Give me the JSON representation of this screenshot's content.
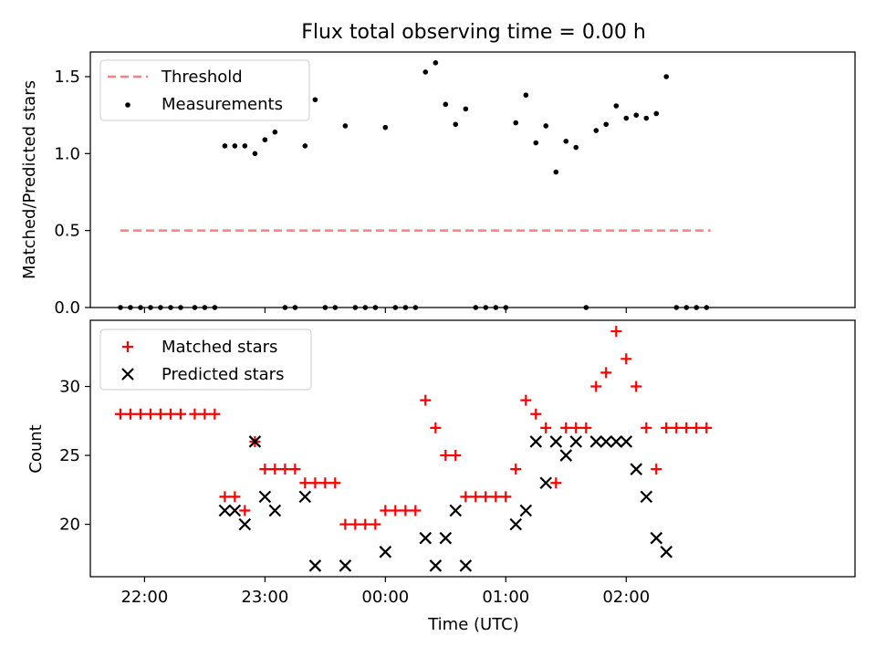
{
  "chart_data": [
    {
      "type": "scatter",
      "title": "Flux total observing time = 0.00 h",
      "xlabel": "",
      "ylabel": "Matched/Predicted stars",
      "ylim": [
        0,
        1.66
      ],
      "y_ticks": [
        0.0,
        0.5,
        1.0,
        1.5
      ],
      "y_tick_labels": [
        "0.0",
        "0.5",
        "1.0",
        "1.5"
      ],
      "x_unit": "hours after 22:00 UTC",
      "xlim": [
        -0.45,
        5.9
      ],
      "grid": false,
      "legend_position": "top-left",
      "series": [
        {
          "name": "Threshold",
          "kind": "dashed-line",
          "color": "#ff7f7f",
          "x": [
            -0.2,
            4.7
          ],
          "y": [
            0.5,
            0.5
          ]
        },
        {
          "name": "Measurements",
          "kind": "points",
          "color": "#000000",
          "x": [
            -0.2,
            -0.117,
            -0.033,
            0.05,
            0.133,
            0.217,
            0.3,
            0.417,
            0.5,
            0.583,
            0.667,
            0.75,
            0.833,
            0.917,
            1.0,
            1.083,
            1.167,
            1.25,
            1.333,
            1.417,
            1.5,
            1.583,
            1.667,
            1.75,
            1.833,
            1.917,
            2.0,
            2.083,
            2.167,
            2.25,
            2.333,
            2.417,
            2.5,
            2.583,
            2.667,
            2.75,
            2.833,
            2.917,
            3.0,
            3.083,
            3.167,
            3.25,
            3.333,
            3.417,
            3.5,
            3.583,
            3.667,
            3.75,
            3.833,
            3.917,
            4.0,
            4.083,
            4.167,
            4.25,
            4.333,
            4.417,
            4.5,
            4.583,
            4.667
          ],
          "y": [
            0,
            0,
            0,
            0,
            0,
            0,
            0,
            0,
            0,
            0,
            1.05,
            1.05,
            1.05,
            1.0,
            1.09,
            1.14,
            0,
            0,
            1.05,
            1.35,
            0,
            0,
            1.18,
            0,
            0,
            0,
            1.17,
            0,
            0,
            0,
            1.53,
            1.59,
            1.32,
            1.19,
            1.29,
            0,
            0,
            0,
            0,
            1.2,
            1.38,
            1.07,
            1.18,
            0.88,
            1.08,
            1.04,
            0,
            1.15,
            1.19,
            1.31,
            1.23,
            1.25,
            1.23,
            1.26,
            1.5,
            0,
            0,
            0,
            0
          ]
        }
      ]
    },
    {
      "type": "scatter",
      "title": "",
      "xlabel": "Time (UTC)",
      "ylabel": "Count",
      "ylim": [
        16.2,
        34.8
      ],
      "y_ticks": [
        20,
        25,
        30
      ],
      "y_tick_labels": [
        "20",
        "25",
        "30"
      ],
      "x_unit": "hours after 22:00 UTC",
      "xlim": [
        -0.45,
        5.9
      ],
      "x_ticks": [
        0,
        1,
        2,
        3,
        4
      ],
      "x_tick_labels": [
        "22:00",
        "23:00",
        "00:00",
        "01:00",
        "02:00"
      ],
      "grid": false,
      "legend_position": "top-left",
      "series": [
        {
          "name": "Matched stars",
          "kind": "plus",
          "color": "#ff0000",
          "x": [
            -0.2,
            -0.117,
            -0.033,
            0.05,
            0.133,
            0.217,
            0.3,
            0.417,
            0.5,
            0.583,
            0.667,
            0.75,
            0.833,
            0.917,
            1.0,
            1.083,
            1.167,
            1.25,
            1.333,
            1.417,
            1.5,
            1.583,
            1.667,
            1.75,
            1.833,
            1.917,
            2.0,
            2.083,
            2.167,
            2.25,
            2.333,
            2.417,
            2.5,
            2.583,
            2.667,
            2.75,
            2.833,
            2.917,
            3.0,
            3.083,
            3.167,
            3.25,
            3.333,
            3.417,
            3.5,
            3.583,
            3.667,
            3.75,
            3.833,
            3.917,
            4.0,
            4.083,
            4.167,
            4.25,
            4.333,
            4.417,
            4.5,
            4.583,
            4.667
          ],
          "y": [
            28,
            28,
            28,
            28,
            28,
            28,
            28,
            28,
            28,
            28,
            22,
            22,
            21,
            26,
            24,
            24,
            24,
            24,
            23,
            23,
            23,
            23,
            20,
            20,
            20,
            20,
            21,
            21,
            21,
            21,
            29,
            27,
            25,
            25,
            22,
            22,
            22,
            22,
            22,
            24,
            29,
            28,
            27,
            23,
            27,
            27,
            27,
            30,
            31,
            34,
            32,
            30,
            27,
            24,
            27,
            27,
            27,
            27,
            27
          ]
        },
        {
          "name": "Predicted stars",
          "kind": "cross",
          "color": "#000000",
          "x": [
            0.667,
            0.75,
            0.833,
            0.917,
            1.0,
            1.083,
            1.333,
            1.417,
            1.667,
            2.0,
            2.333,
            2.417,
            2.5,
            2.583,
            2.667,
            3.083,
            3.167,
            3.25,
            3.333,
            3.417,
            3.5,
            3.583,
            3.75,
            3.833,
            3.917,
            4.0,
            4.083,
            4.167,
            4.25,
            4.333
          ],
          "y": [
            21,
            21,
            20,
            26,
            22,
            21,
            22,
            17,
            17,
            18,
            19,
            17,
            19,
            21,
            17,
            20,
            21,
            26,
            23,
            26,
            25,
            26,
            26,
            26,
            26,
            26,
            24,
            22,
            19,
            18
          ]
        }
      ]
    }
  ]
}
